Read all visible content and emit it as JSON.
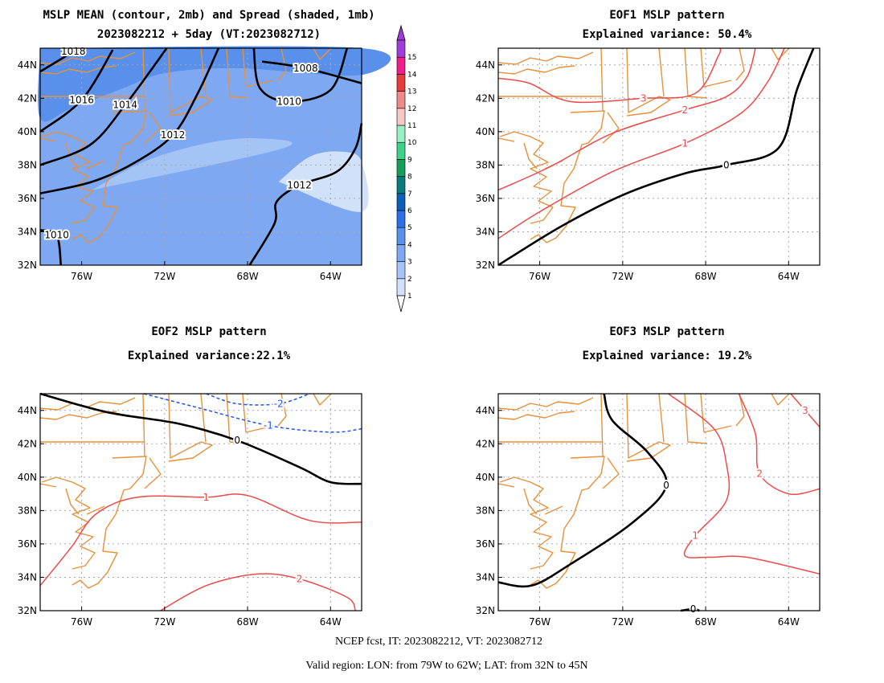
{
  "page": {
    "footer_line1": "NCEP fcst, IT: 2023082212, VT: 2023082712",
    "footer_line2": "Valid region: LON: from 79W to 62W; LAT: from 32N to 45N"
  },
  "colorbar": {
    "levels": [
      "1",
      "2",
      "3",
      "4",
      "5",
      "6",
      "7",
      "8",
      "9",
      "10",
      "11",
      "12",
      "13",
      "14",
      "15"
    ],
    "colors": [
      "#d2e1fa",
      "#a5c4f6",
      "#7ea9f2",
      "#5890ec",
      "#2d6fe6",
      "#0b5fb8",
      "#0a7a7a",
      "#14a05a",
      "#3cd28c",
      "#9af0c4",
      "#f5c8c8",
      "#f08a8a",
      "#e63c3c",
      "#f01e8c",
      "#a03cdc"
    ]
  },
  "chart_data": [
    {
      "type": "contour",
      "title": "MSLP MEAN (contour, 2mb) and Spread (shaded, 1mb)",
      "subtitle": "2023082212 + 5day (VT:2023082712)",
      "xlim": [
        -78,
        -62.5
      ],
      "ylim": [
        32,
        45
      ],
      "xticks": [
        -76,
        -72,
        -68,
        -64
      ],
      "xticklabels": [
        "76W",
        "72W",
        "68W",
        "64W"
      ],
      "yticks": [
        32,
        34,
        36,
        38,
        40,
        42,
        44
      ],
      "yticklabels": [
        "32N",
        "34N",
        "36N",
        "38N",
        "40N",
        "42N",
        "44N"
      ],
      "shaded_spread": [
        {
          "level": 4,
          "color": "#5890ec",
          "outline": [
            [
              -78,
              45
            ],
            [
              -62.5,
              45
            ],
            [
              -62.5,
              43.4
            ],
            [
              -68.5,
              43.8
            ],
            [
              -72,
              43.5
            ],
            [
              -74,
              42.6
            ],
            [
              -76.5,
              41.4
            ],
            [
              -78,
              40.8
            ]
          ]
        },
        {
          "level": 2,
          "color": "#a5c4f6",
          "outline": [
            [
              -75.5,
              36.5
            ],
            [
              -73,
              38.2
            ],
            [
              -70,
              39.3
            ],
            [
              -67.5,
              39.6
            ],
            [
              -66.3,
              39
            ]
          ]
        },
        {
          "level": 1,
          "color": "#d2e1fa",
          "outline": [
            [
              -66.5,
              37
            ],
            [
              -65,
              38.5
            ],
            [
              -63.5,
              38.8
            ],
            [
              -62.5,
              38.2
            ],
            [
              -62.5,
              35.2
            ]
          ]
        }
      ],
      "contours": [
        {
          "label": "1008",
          "points": [
            [
              -62.5,
              42.9
            ],
            [
              -65.2,
              43.8
            ],
            [
              -67.3,
              44.2
            ]
          ]
        },
        {
          "label": "1010",
          "points": [
            [
              -67.7,
              45
            ],
            [
              -67.4,
              42.6
            ],
            [
              -66,
              41.8
            ],
            [
              -64,
              42.5
            ],
            [
              -63.2,
              45
            ]
          ]
        },
        {
          "label": "1012",
          "points": [
            [
              -67.9,
              32
            ],
            [
              -66.7,
              34.5
            ],
            [
              -66.6,
              35.8
            ],
            [
              -65.5,
              36.8
            ],
            [
              -63.7,
              37.6
            ],
            [
              -62.8,
              39
            ],
            [
              -62.5,
              40.5
            ]
          ]
        },
        {
          "label": "1010",
          "points": [
            [
              -78,
              34.1
            ],
            [
              -77.2,
              33.8
            ],
            [
              -77,
              32
            ]
          ]
        },
        {
          "label": "1012",
          "points": [
            [
              -78,
              36.3
            ],
            [
              -75.5,
              37
            ],
            [
              -73.5,
              38.1
            ],
            [
              -71.6,
              39.8
            ],
            [
              -70.4,
              42.3
            ],
            [
              -69.4,
              45
            ]
          ]
        },
        {
          "label": "1014",
          "points": [
            [
              -78,
              38
            ],
            [
              -75.6,
              39.2
            ],
            [
              -73.9,
              41.6
            ],
            [
              -71.9,
              45
            ]
          ]
        },
        {
          "label": "1016",
          "points": [
            [
              -78,
              40
            ],
            [
              -76,
              41.9
            ],
            [
              -74.5,
              44.9
            ]
          ]
        },
        {
          "label": "1018",
          "points": [
            [
              -78,
              43.6
            ],
            [
              -76.4,
              44.8
            ],
            [
              -76.2,
              45
            ]
          ]
        }
      ]
    },
    {
      "type": "contour",
      "title": "EOF1 MSLP pattern",
      "subtitle": "Explained variance: 50.4%",
      "xlim": [
        -78,
        -62.5
      ],
      "ylim": [
        32,
        45
      ],
      "xticks": [
        -76,
        -72,
        -68,
        -64
      ],
      "xticklabels": [
        "76W",
        "72W",
        "68W",
        "64W"
      ],
      "yticks": [
        32,
        34,
        36,
        38,
        40,
        42,
        44
      ],
      "yticklabels": [
        "32N",
        "34N",
        "36N",
        "38N",
        "40N",
        "42N",
        "44N"
      ],
      "contours": [
        {
          "label": "0",
          "points": [
            [
              -78,
              32
            ],
            [
              -75,
              34.3
            ],
            [
              -72,
              36.2
            ],
            [
              -69,
              37.5
            ],
            [
              -67,
              38
            ],
            [
              -64.5,
              39
            ],
            [
              -63.6,
              42.5
            ],
            [
              -62.8,
              45
            ]
          ]
        },
        {
          "label": "1",
          "points": [
            [
              -78,
              33.6
            ],
            [
              -76,
              35.2
            ],
            [
              -72.5,
              37.6
            ],
            [
              -69,
              39.3
            ],
            [
              -66.3,
              41.1
            ],
            [
              -65,
              43
            ],
            [
              -64.2,
              45
            ]
          ]
        },
        {
          "label": "2",
          "points": [
            [
              -78,
              36.5
            ],
            [
              -75.5,
              37.9
            ],
            [
              -72.5,
              39.9
            ],
            [
              -69,
              41.3
            ],
            [
              -67,
              42.1
            ],
            [
              -66,
              43.3
            ],
            [
              -65.6,
              45
            ]
          ]
        },
        {
          "label": "3",
          "points": [
            [
              -78,
              43.2
            ],
            [
              -76.5,
              42.9
            ],
            [
              -74.5,
              41.8
            ],
            [
              -71,
              42
            ],
            [
              -68.5,
              42.3
            ],
            [
              -67.4,
              44.5
            ],
            [
              -67.3,
              45
            ]
          ]
        }
      ]
    },
    {
      "type": "contour",
      "title": "EOF2 MSLP pattern",
      "subtitle": "Explained variance:22.1%",
      "xlim": [
        -78,
        -62.5
      ],
      "ylim": [
        32,
        45
      ],
      "xticks": [
        -76,
        -72,
        -68,
        -64
      ],
      "xticklabels": [
        "76W",
        "72W",
        "68W",
        "64W"
      ],
      "yticks": [
        32,
        34,
        36,
        38,
        40,
        42,
        44
      ],
      "yticklabels": [
        "32N",
        "34N",
        "36N",
        "38N",
        "40N",
        "42N",
        "44N"
      ],
      "contours": [
        {
          "label": "-2",
          "style": "dashed",
          "points": [
            [
              -70,
              45
            ],
            [
              -68.5,
              44.4
            ],
            [
              -66.5,
              44.4
            ],
            [
              -65,
              45
            ]
          ]
        },
        {
          "label": "-1",
          "style": "dashed",
          "points": [
            [
              -73,
              45
            ],
            [
              -70.5,
              44.2
            ],
            [
              -67,
              43.1
            ],
            [
              -64,
              42.7
            ],
            [
              -62.5,
              42.9
            ]
          ]
        },
        {
          "label": "0",
          "points": [
            [
              -78,
              45
            ],
            [
              -74.8,
              43.9
            ],
            [
              -71.3,
              43.2
            ],
            [
              -68.5,
              42.2
            ],
            [
              -65.5,
              40.6
            ],
            [
              -64,
              39.7
            ],
            [
              -62.5,
              39.6
            ]
          ]
        },
        {
          "label": "1",
          "points": [
            [
              -78,
              33.5
            ],
            [
              -76.5,
              35.8
            ],
            [
              -75.3,
              37.8
            ],
            [
              -73.3,
              38.8
            ],
            [
              -70,
              38.8
            ],
            [
              -68,
              38.9
            ],
            [
              -65,
              37.4
            ],
            [
              -62.5,
              37.3
            ]
          ]
        },
        {
          "label": "2",
          "points": [
            [
              -72.2,
              32
            ],
            [
              -70,
              33.5
            ],
            [
              -67.5,
              34.2
            ],
            [
              -65.5,
              33.9
            ],
            [
              -63.2,
              32.8
            ],
            [
              -62.8,
              32
            ]
          ]
        }
      ]
    },
    {
      "type": "contour",
      "title": "EOF3 MSLP pattern",
      "subtitle": "Explained variance: 19.2%",
      "xlim": [
        -78,
        -62.5
      ],
      "ylim": [
        32,
        45
      ],
      "xticks": [
        -76,
        -72,
        -68,
        -64
      ],
      "xticklabels": [
        "76W",
        "72W",
        "68W",
        "64W"
      ],
      "yticks": [
        32,
        34,
        36,
        38,
        40,
        42,
        44
      ],
      "yticklabels": [
        "32N",
        "34N",
        "36N",
        "38N",
        "40N",
        "42N",
        "44N"
      ],
      "contours": [
        {
          "label": "0",
          "points": [
            [
              -78,
              33.7
            ],
            [
              -76.4,
              33.5
            ],
            [
              -74.5,
              34.8
            ],
            [
              -71.5,
              37.3
            ],
            [
              -69.9,
              39.5
            ],
            [
              -70.8,
              41.5
            ],
            [
              -72.5,
              43.4
            ],
            [
              -72.9,
              45
            ]
          ]
        },
        {
          "label": "0",
          "points": [
            [
              -69.2,
              32
            ],
            [
              -68.6,
              32.1
            ],
            [
              -68.3,
              32
            ]
          ]
        },
        {
          "label": "1",
          "points": [
            [
              -62.5,
              34.2
            ],
            [
              -66,
              35.2
            ],
            [
              -67.8,
              35.2
            ],
            [
              -69,
              35.3
            ],
            [
              -68.5,
              36.5
            ],
            [
              -67,
              38.6
            ],
            [
              -67,
              40.8
            ],
            [
              -67.6,
              42.9
            ],
            [
              -69.8,
              45
            ]
          ]
        },
        {
          "label": "2",
          "points": [
            [
              -62.5,
              39.3
            ],
            [
              -64,
              39
            ],
            [
              -65.4,
              40.2
            ],
            [
              -65.6,
              42.6
            ],
            [
              -66.4,
              45
            ]
          ]
        },
        {
          "label": "3",
          "points": [
            [
              -62.5,
              43
            ],
            [
              -63.2,
              44
            ],
            [
              -63.9,
              45
            ]
          ]
        }
      ]
    }
  ]
}
